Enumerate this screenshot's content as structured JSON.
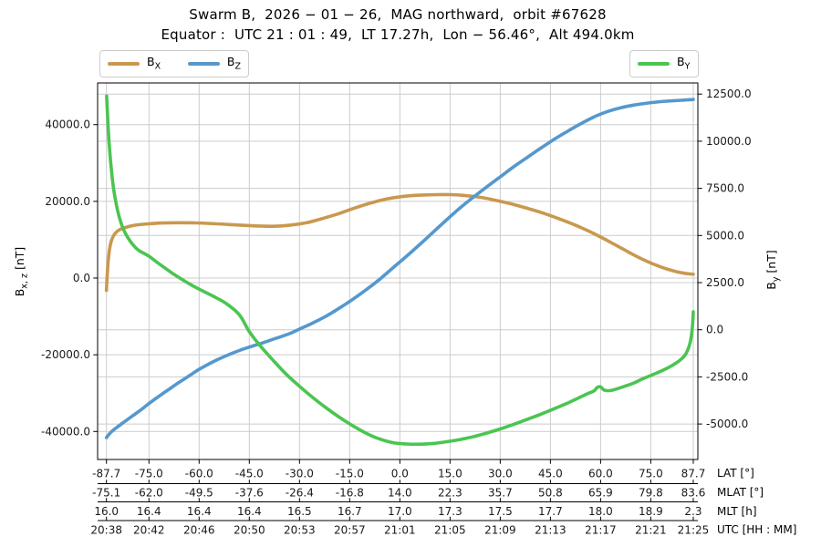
{
  "header": {
    "title": "Swarm B,  2026 − 01 − 26,  MAG northward,  orbit #67628",
    "subtitle": "Equator :  UTC 21 : 01 : 49,  LT 17.27h,  Lon − 56.46°,  Alt 494.0km"
  },
  "legend_left": {
    "entries": [
      {
        "base": "B",
        "sub": "X",
        "series": "B_X"
      },
      {
        "base": "B",
        "sub": "Z",
        "series": "B_Z"
      }
    ]
  },
  "legend_right": {
    "entries": [
      {
        "base": "B",
        "sub": "Y",
        "series": "B_Y"
      }
    ]
  },
  "axes": {
    "left": {
      "label_base": "B",
      "label_sub": "x, z",
      "label_unit": " [nT]",
      "ticks": [
        {
          "value": 40000,
          "label": "40000.0"
        },
        {
          "value": 20000,
          "label": "20000.0"
        },
        {
          "value": 0,
          "label": "0.0"
        },
        {
          "value": -20000,
          "label": "-20000.0"
        },
        {
          "value": -40000,
          "label": "-40000.0"
        }
      ]
    },
    "right": {
      "label_base": "B",
      "label_sub": "y",
      "label_unit": " [nT]",
      "ticks": [
        {
          "value": 12500,
          "label": "12500.0"
        },
        {
          "value": 10000,
          "label": "10000.0"
        },
        {
          "value": 7500,
          "label": "7500.0"
        },
        {
          "value": 5000,
          "label": "5000.0"
        },
        {
          "value": 2500,
          "label": "2500.0"
        },
        {
          "value": 0,
          "label": "0.0"
        },
        {
          "value": -2500,
          "label": "-2500.0"
        },
        {
          "value": -5000,
          "label": "-5000.0"
        }
      ]
    },
    "bottom": {
      "tick_positions_lat": [
        -87.7,
        -75,
        -60,
        -45,
        -30,
        -15,
        0,
        15,
        30,
        45,
        60,
        75,
        87.7
      ],
      "rows": [
        {
          "caption": "LAT [°]",
          "values": [
            "-87.7",
            "-75.0",
            "-60.0",
            "-45.0",
            "-30.0",
            "-15.0",
            "0.0",
            "15.0",
            "30.0",
            "45.0",
            "60.0",
            "75.0",
            "87.7"
          ]
        },
        {
          "caption": "MLAT [°]",
          "values": [
            "-75.1",
            "-62.0",
            "-49.5",
            "-37.6",
            "-26.4",
            "-16.8",
            "14.0",
            "22.3",
            "35.7",
            "50.8",
            "65.9",
            "79.8",
            "83.6"
          ]
        },
        {
          "caption": "MLT [h]",
          "values": [
            "16.0",
            "16.4",
            "16.4",
            "16.4",
            "16.5",
            "16.7",
            "17.0",
            "17.3",
            "17.5",
            "17.7",
            "18.0",
            "18.9",
            "2.3"
          ]
        },
        {
          "caption": "UTC [HH : MM]",
          "values": [
            "20:38",
            "20:42",
            "20:46",
            "20:50",
            "20:53",
            "20:57",
            "21:01",
            "21:05",
            "21:09",
            "21:13",
            "21:17",
            "21:21",
            "21:25"
          ]
        }
      ]
    }
  },
  "colors": {
    "grid": "#cccccc",
    "spine": "#000000",
    "bx": "#c9984f",
    "bz": "#5598ce",
    "by": "#4ac551"
  },
  "chart_data": {
    "type": "line",
    "title": "Swarm B, 2026-01-26, MAG northward, orbit #67628",
    "subtitle": "Equator: UTC 21:01:49, LT 17.27h, Lon -56.46°, Alt 494.0km",
    "x_label": "LAT [°]",
    "xlim": [
      -90.3,
      89.1
    ],
    "grid": true,
    "legend_positions": [
      "top-left",
      "top-right"
    ],
    "y_left": {
      "label": "Bx,z [nT]",
      "ticks": [
        40000,
        20000,
        0,
        -20000,
        -40000
      ],
      "lim": [
        -47300,
        50900
      ]
    },
    "y_right": {
      "label": "By [nT]",
      "ticks": [
        12500,
        10000,
        7500,
        5000,
        2500,
        0,
        -2500,
        -5000
      ],
      "lim": [
        -6880,
        13090
      ]
    },
    "series": [
      {
        "name": "B_X",
        "axis": "left",
        "color": "#c9984f",
        "points": [
          [
            -87.7,
            -3200
          ],
          [
            -87.5,
            200
          ],
          [
            -87.2,
            4200
          ],
          [
            -86.8,
            7400
          ],
          [
            -86.2,
            9800
          ],
          [
            -85.3,
            11400
          ],
          [
            -84,
            12500
          ],
          [
            -82,
            13200
          ],
          [
            -79,
            13800
          ],
          [
            -75,
            14150
          ],
          [
            -71,
            14350
          ],
          [
            -66,
            14430
          ],
          [
            -61,
            14380
          ],
          [
            -55,
            14150
          ],
          [
            -49,
            13850
          ],
          [
            -43,
            13600
          ],
          [
            -38,
            13500
          ],
          [
            -33,
            13750
          ],
          [
            -28,
            14400
          ],
          [
            -24,
            15300
          ],
          [
            -19,
            16600
          ],
          [
            -14,
            18100
          ],
          [
            -9,
            19500
          ],
          [
            -4,
            20600
          ],
          [
            1,
            21300
          ],
          [
            6,
            21600
          ],
          [
            11,
            21740
          ],
          [
            15,
            21750
          ],
          [
            19,
            21550
          ],
          [
            24,
            21050
          ],
          [
            28,
            20400
          ],
          [
            33,
            19400
          ],
          [
            38,
            18200
          ],
          [
            43,
            16900
          ],
          [
            48,
            15300
          ],
          [
            53,
            13600
          ],
          [
            58,
            11600
          ],
          [
            62,
            9800
          ],
          [
            66,
            7900
          ],
          [
            70,
            6000
          ],
          [
            74,
            4300
          ],
          [
            78,
            2900
          ],
          [
            82,
            1800
          ],
          [
            85,
            1250
          ],
          [
            87,
            1050
          ],
          [
            87.7,
            1000
          ]
        ]
      },
      {
        "name": "B_Z",
        "axis": "left",
        "color": "#5598ce",
        "points": [
          [
            -87.7,
            -41600
          ],
          [
            -86.5,
            -40300
          ],
          [
            -85,
            -39200
          ],
          [
            -83,
            -37900
          ],
          [
            -80,
            -36000
          ],
          [
            -77,
            -34100
          ],
          [
            -75,
            -32700
          ],
          [
            -72,
            -30800
          ],
          [
            -69,
            -29000
          ],
          [
            -66,
            -27200
          ],
          [
            -63,
            -25500
          ],
          [
            -60,
            -23800
          ],
          [
            -56,
            -21900
          ],
          [
            -52,
            -20300
          ],
          [
            -48,
            -18900
          ],
          [
            -45,
            -18000
          ],
          [
            -41,
            -16900
          ],
          [
            -37,
            -15700
          ],
          [
            -33,
            -14500
          ],
          [
            -30,
            -13300
          ],
          [
            -26,
            -11700
          ],
          [
            -22,
            -9900
          ],
          [
            -18,
            -7800
          ],
          [
            -14,
            -5500
          ],
          [
            -10,
            -3000
          ],
          [
            -6,
            -300
          ],
          [
            -2,
            2700
          ],
          [
            2,
            5700
          ],
          [
            6,
            8800
          ],
          [
            10,
            12000
          ],
          [
            14,
            15200
          ],
          [
            18,
            18300
          ],
          [
            22,
            21100
          ],
          [
            26,
            23800
          ],
          [
            30,
            26400
          ],
          [
            34,
            29000
          ],
          [
            38,
            31400
          ],
          [
            42,
            33800
          ],
          [
            46,
            36100
          ],
          [
            50,
            38200
          ],
          [
            54,
            40200
          ],
          [
            58,
            42000
          ],
          [
            62,
            43400
          ],
          [
            66,
            44400
          ],
          [
            70,
            45100
          ],
          [
            74,
            45600
          ],
          [
            78,
            46000
          ],
          [
            82,
            46250
          ],
          [
            85,
            46400
          ],
          [
            87.7,
            46550
          ]
        ]
      },
      {
        "name": "B_Y",
        "axis": "right",
        "color": "#4ac551",
        "points": [
          [
            -87.65,
            12400
          ],
          [
            -87.45,
            11700
          ],
          [
            -87.2,
            10800
          ],
          [
            -86.9,
            9900
          ],
          [
            -86.5,
            9000
          ],
          [
            -86,
            8100
          ],
          [
            -85.4,
            7300
          ],
          [
            -84.7,
            6600
          ],
          [
            -83.9,
            6000
          ],
          [
            -83,
            5500
          ],
          [
            -82,
            5100
          ],
          [
            -81,
            4800
          ],
          [
            -79.5,
            4450
          ],
          [
            -78,
            4200
          ],
          [
            -76.5,
            4050
          ],
          [
            -75,
            3900
          ],
          [
            -72,
            3500
          ],
          [
            -68,
            3000
          ],
          [
            -64,
            2550
          ],
          [
            -60,
            2150
          ],
          [
            -56,
            1800
          ],
          [
            -52,
            1400
          ],
          [
            -48,
            800
          ],
          [
            -45,
            -100
          ],
          [
            -42,
            -800
          ],
          [
            -38,
            -1600
          ],
          [
            -34,
            -2350
          ],
          [
            -30,
            -3000
          ],
          [
            -26,
            -3600
          ],
          [
            -22,
            -4150
          ],
          [
            -18,
            -4650
          ],
          [
            -14,
            -5100
          ],
          [
            -10,
            -5500
          ],
          [
            -6,
            -5800
          ],
          [
            -2,
            -5990
          ],
          [
            2,
            -6060
          ],
          [
            6,
            -6070
          ],
          [
            10,
            -6030
          ],
          [
            14,
            -5940
          ],
          [
            18,
            -5820
          ],
          [
            22,
            -5670
          ],
          [
            26,
            -5480
          ],
          [
            30,
            -5260
          ],
          [
            34,
            -5020
          ],
          [
            38,
            -4760
          ],
          [
            42,
            -4490
          ],
          [
            46,
            -4200
          ],
          [
            50,
            -3900
          ],
          [
            53,
            -3650
          ],
          [
            56,
            -3400
          ],
          [
            58,
            -3250
          ],
          [
            59,
            -3060
          ],
          [
            60,
            -3030
          ],
          [
            61,
            -3190
          ],
          [
            62.5,
            -3230
          ],
          [
            64,
            -3180
          ],
          [
            66,
            -3070
          ],
          [
            68,
            -2950
          ],
          [
            70,
            -2820
          ],
          [
            72,
            -2650
          ],
          [
            74,
            -2500
          ],
          [
            76,
            -2350
          ],
          [
            78,
            -2200
          ],
          [
            80,
            -2030
          ],
          [
            82,
            -1830
          ],
          [
            83.5,
            -1650
          ],
          [
            85,
            -1400
          ],
          [
            86,
            -1100
          ],
          [
            86.8,
            -650
          ],
          [
            87.3,
            -100
          ],
          [
            87.6,
            550
          ],
          [
            87.7,
            950
          ]
        ]
      }
    ]
  }
}
